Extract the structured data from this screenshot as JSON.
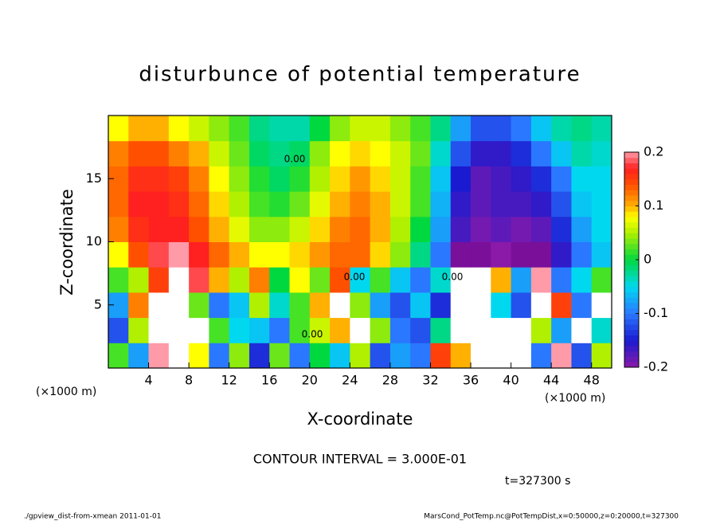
{
  "chart_data": {
    "type": "heatmap",
    "title": "disturbunce of potential temperature",
    "x_label": "X-coordinate",
    "y_label": "Z-coordinate",
    "x_unit": "(×1000 m)",
    "y_unit": "(×1000 m)",
    "note": "CONTOUR INTERVAL = 3.000E-01",
    "time_label": "t=327300 s",
    "footer_left": "./gpview_dist-from-xmean  2011-01-01",
    "footer_right": "MarsCond_PotTemp.nc@PotTempDist,x=0:50000,z=0:20000,t=327300",
    "contour_labels": [
      "0.00",
      "0.00",
      "0.00",
      "0.00"
    ],
    "xlim": [
      0,
      50
    ],
    "ylim": [
      0,
      20
    ],
    "xticks": [
      4,
      8,
      12,
      16,
      20,
      24,
      28,
      32,
      36,
      40,
      44,
      48
    ],
    "yticks": [
      5,
      10,
      15
    ],
    "clim": [
      -0.2,
      0.2
    ],
    "cticks": [
      -0.2,
      -0.1,
      0,
      0.1,
      0.2
    ],
    "over_color": "#ffffff",
    "under_color": "#7a0f9a",
    "colormap": [
      {
        "value": -0.2,
        "color": "#8b1aa8"
      },
      {
        "value": -0.15,
        "color": "#1a1ad0"
      },
      {
        "value": -0.1,
        "color": "#2a78ff"
      },
      {
        "value": -0.05,
        "color": "#00d8f0"
      },
      {
        "value": 0,
        "color": "#00d840"
      },
      {
        "value": 0.05,
        "color": "#b0f000"
      },
      {
        "value": 0.08,
        "color": "#ffff00"
      },
      {
        "value": 0.1,
        "color": "#ffb000"
      },
      {
        "value": 0.14,
        "color": "#ff5000"
      },
      {
        "value": 0.17,
        "color": "#ff2020"
      },
      {
        "value": 0.2,
        "color": "#ff9aa8"
      }
    ],
    "x": [
      1,
      3,
      5,
      7,
      9,
      11,
      13,
      15,
      17,
      19,
      21,
      23,
      25,
      27,
      29,
      31,
      33,
      35,
      37,
      39,
      41,
      43,
      45,
      47,
      49
    ],
    "z": [
      1,
      3,
      5,
      7,
      9,
      11,
      13,
      15,
      17,
      19
    ],
    "values": [
      [
        0.02,
        -0.08,
        0.2,
        0.25,
        0.08,
        -0.1,
        0.04,
        -0.14,
        0.03,
        -0.1,
        0.0,
        -0.06,
        0.05,
        -0.12,
        -0.08,
        -0.1,
        0.15,
        0.1,
        0.25,
        0.24,
        0.26,
        -0.1,
        0.2,
        -0.12,
        0.05
      ],
      [
        -0.12,
        0.05,
        0.25,
        0.26,
        0.22,
        0.02,
        -0.05,
        -0.06,
        -0.1,
        0.02,
        0.06,
        0.1,
        0.25,
        0.04,
        -0.1,
        -0.12,
        -0.02,
        0.25,
        0.24,
        0.26,
        0.25,
        0.05,
        -0.08,
        0.22,
        -0.04
      ],
      [
        -0.08,
        0.12,
        0.25,
        0.24,
        0.03,
        -0.1,
        -0.06,
        0.05,
        -0.04,
        0.02,
        0.1,
        0.25,
        0.04,
        -0.08,
        -0.12,
        -0.06,
        -0.14,
        0.25,
        0.26,
        -0.05,
        -0.12,
        0.22,
        0.15,
        -0.1,
        0.25
      ],
      [
        0.02,
        0.05,
        0.15,
        0.22,
        0.18,
        0.1,
        0.05,
        0.12,
        0.0,
        0.08,
        0.03,
        0.14,
        -0.05,
        0.02,
        -0.06,
        -0.1,
        -0.04,
        0.25,
        0.24,
        0.1,
        -0.08,
        0.2,
        -0.1,
        -0.05,
        0.02
      ],
      [
        0.08,
        0.14,
        0.18,
        0.2,
        0.17,
        0.13,
        0.1,
        0.08,
        0.08,
        0.09,
        0.11,
        0.13,
        0.13,
        0.09,
        0.04,
        -0.02,
        -0.1,
        -0.22,
        -0.24,
        -0.2,
        -0.23,
        -0.21,
        -0.16,
        -0.1,
        -0.06
      ],
      [
        0.12,
        0.16,
        0.17,
        0.17,
        0.14,
        0.1,
        0.07,
        0.04,
        0.04,
        0.06,
        0.09,
        0.12,
        0.13,
        0.1,
        0.05,
        0.0,
        -0.08,
        -0.17,
        -0.19,
        -0.18,
        -0.19,
        -0.18,
        -0.14,
        -0.08,
        -0.05
      ],
      [
        0.13,
        0.17,
        0.17,
        0.16,
        0.13,
        0.09,
        0.05,
        0.02,
        0.01,
        0.03,
        0.07,
        0.1,
        0.12,
        0.1,
        0.06,
        0.02,
        -0.07,
        -0.16,
        -0.18,
        -0.17,
        -0.17,
        -0.16,
        -0.12,
        -0.06,
        -0.05
      ],
      [
        0.13,
        0.16,
        0.16,
        0.15,
        0.12,
        0.08,
        0.04,
        0.01,
        -0.01,
        0.01,
        0.05,
        0.09,
        0.11,
        0.09,
        0.06,
        0.02,
        -0.06,
        -0.15,
        -0.18,
        -0.17,
        -0.16,
        -0.14,
        -0.1,
        -0.05,
        -0.05
      ],
      [
        0.12,
        0.14,
        0.14,
        0.12,
        0.1,
        0.06,
        0.03,
        -0.01,
        -0.02,
        -0.01,
        0.04,
        0.08,
        0.09,
        0.08,
        0.06,
        0.03,
        -0.04,
        -0.12,
        -0.16,
        -0.16,
        -0.14,
        -0.1,
        -0.06,
        -0.03,
        -0.04
      ],
      [
        0.08,
        0.1,
        0.1,
        0.08,
        0.06,
        0.04,
        0.02,
        -0.02,
        -0.03,
        -0.03,
        0.0,
        0.04,
        0.06,
        0.06,
        0.04,
        0.02,
        -0.02,
        -0.08,
        -0.12,
        -0.12,
        -0.1,
        -0.06,
        -0.03,
        -0.02,
        -0.03
      ]
    ]
  }
}
